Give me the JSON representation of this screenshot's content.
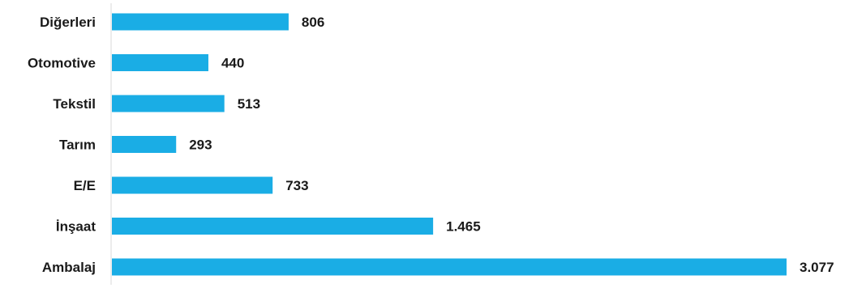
{
  "chart_data": {
    "type": "bar",
    "orientation": "horizontal",
    "categories": [
      "Diğerleri",
      "Otomotive",
      "Tekstil",
      "Tarım",
      "E/E",
      "İnşaat",
      "Ambalaj"
    ],
    "values": [
      806,
      440,
      513,
      293,
      733,
      1465,
      3077
    ],
    "value_labels": [
      "806",
      "440",
      "513",
      "293",
      "733",
      "1.465",
      "3.077"
    ],
    "title": "",
    "xlabel": "",
    "ylabel": "",
    "xlim": [
      0,
      3077
    ],
    "grid": false,
    "legend": "none",
    "bar_color": "#1AADE5",
    "axis_color": "#D9D9D9"
  }
}
